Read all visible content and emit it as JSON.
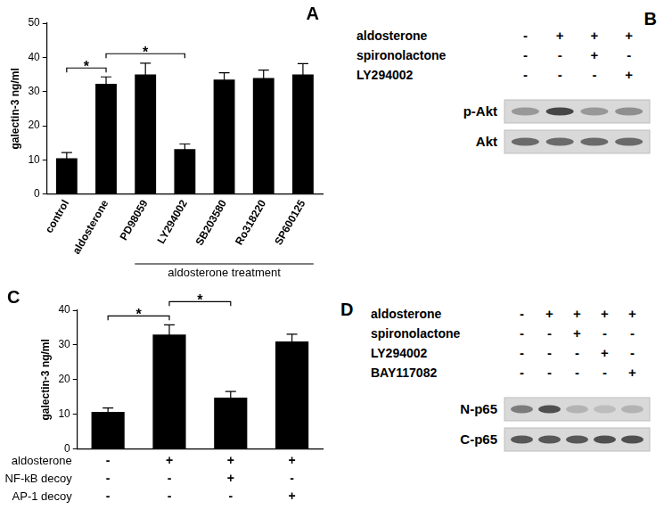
{
  "chart_data": [
    {
      "type": "bar",
      "title": "A",
      "y_label": "galectin-3 ng/ml",
      "categories": [
        "control",
        "aldosterone",
        "PD98059",
        "LY294002",
        "SB203580",
        "Ro318220",
        "SP600125"
      ],
      "values": [
        10.5,
        32.3,
        35,
        13.2,
        33.5,
        34,
        35
      ],
      "errors": [
        1.7,
        2,
        3.3,
        1.5,
        2,
        2.3,
        3.2
      ],
      "color": "#000000",
      "ylim": [
        0,
        50
      ],
      "yticks": [
        0,
        10,
        20,
        30,
        40,
        50
      ],
      "grid": false,
      "significance": [
        {
          "label": "*",
          "between": [
            0,
            1
          ]
        },
        {
          "label": "*",
          "between": [
            1,
            3
          ]
        }
      ],
      "annotations": [
        {
          "text": "aldosterone treatment",
          "categories": [
            2,
            6
          ]
        }
      ]
    },
    {
      "type": "bar",
      "title": "C",
      "y_label": "galectin-3 ng/ml",
      "categories": [
        null,
        null,
        null,
        null
      ],
      "values": [
        10.7,
        33,
        14.8,
        31
      ],
      "errors": [
        1.1,
        2.8,
        1.8,
        2.1
      ],
      "color": "#000000",
      "ylim": [
        0,
        40
      ],
      "yticks": [
        0,
        10,
        20,
        30,
        40
      ],
      "grid": false,
      "significance": [
        {
          "label": "*",
          "between": [
            0,
            1
          ]
        },
        {
          "label": "*",
          "between": [
            1,
            2
          ]
        }
      ],
      "conditions": [
        {
          "name": "aldosterone",
          "marks": [
            "-",
            "+",
            "+",
            "+"
          ]
        },
        {
          "name": "NF-kB decoy",
          "marks": [
            "-",
            "-",
            "+",
            "-"
          ]
        },
        {
          "name": "AP-1 decoy",
          "marks": [
            "-",
            "-",
            "-",
            "+"
          ]
        }
      ]
    }
  ],
  "blots": [
    {
      "title": "B",
      "conditions": [
        {
          "name": "aldosterone",
          "marks": [
            "-",
            "+",
            "+",
            "+"
          ]
        },
        {
          "name": "spironolactone",
          "marks": [
            "-",
            "-",
            "+",
            "-"
          ]
        },
        {
          "name": "LY294002",
          "marks": [
            "-",
            "-",
            "-",
            "+"
          ]
        }
      ],
      "bands": [
        {
          "name": "p-Akt",
          "intensity": [
            0.35,
            0.8,
            0.35,
            0.4
          ]
        },
        {
          "name": "Akt",
          "intensity": [
            0.6,
            0.6,
            0.6,
            0.6
          ]
        }
      ]
    },
    {
      "title": "D",
      "conditions": [
        {
          "name": "aldosterone",
          "marks": [
            "-",
            "+",
            "+",
            "+",
            "+"
          ]
        },
        {
          "name": "spironolactone",
          "marks": [
            "-",
            "-",
            "+",
            "-",
            "-"
          ]
        },
        {
          "name": "LY294002",
          "marks": [
            "-",
            "-",
            "-",
            "+",
            "-"
          ]
        },
        {
          "name": "BAY117082",
          "marks": [
            "-",
            "-",
            "-",
            "-",
            "+"
          ]
        }
      ],
      "bands": [
        {
          "name": "N-p65",
          "intensity": [
            0.5,
            0.75,
            0.2,
            0.15,
            0.2
          ]
        },
        {
          "name": "C-p65",
          "intensity": [
            0.7,
            0.7,
            0.7,
            0.75,
            0.75
          ]
        }
      ]
    }
  ]
}
